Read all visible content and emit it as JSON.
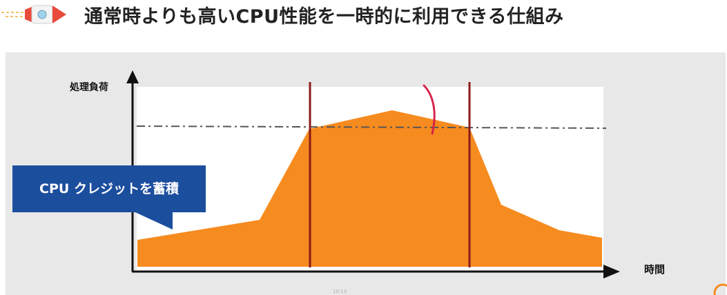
{
  "header": {
    "title": "通常時よりも高いCPU性能を一時的に利用できる仕組み",
    "icon": "rocket-icon"
  },
  "diagram": {
    "y_axis_label": "処理負荷",
    "x_axis_label": "時間",
    "callout": "CPU クレジットを蓄積",
    "colors": {
      "load_area": "#f68b1f",
      "threshold_line": "#555555",
      "boundary_lines": "#8b1a1a",
      "callout_bg": "#1c4e9e",
      "panel_bg": "#e8e8e8"
    }
  },
  "footer": {
    "page_number": "10:13"
  }
}
